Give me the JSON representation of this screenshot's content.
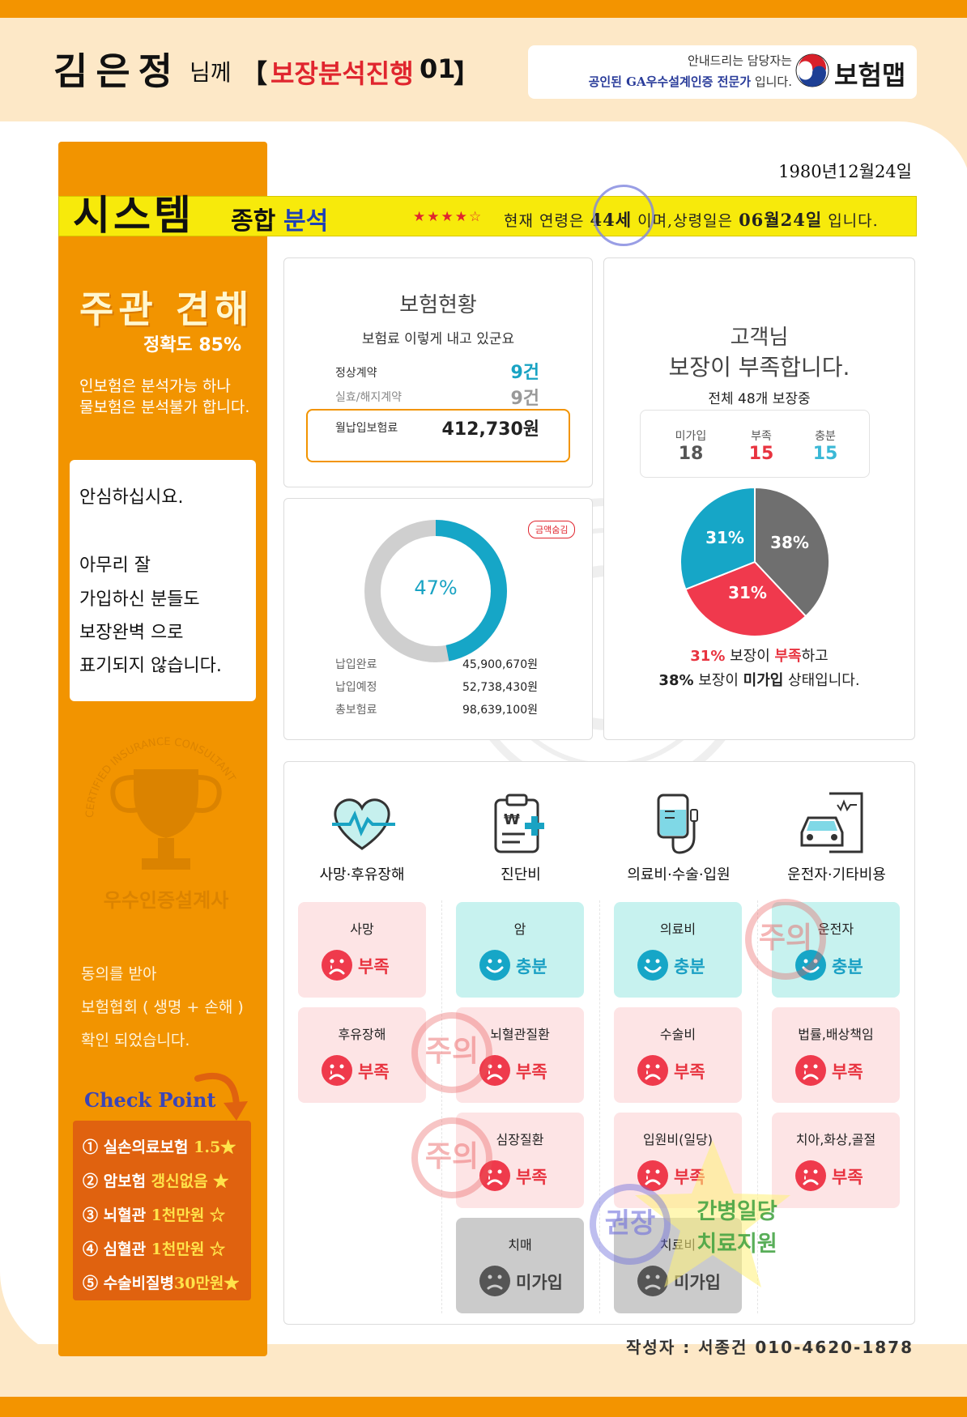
{
  "header": {
    "customer_name": "김은정",
    "honorific": "님께",
    "bracket_left": "【",
    "title": "보장분석진행",
    "number": "01",
    "bracket_right": "】",
    "guide_line1": "안내드리는 담당자는",
    "guide_line2_bold": "공인된 GA우수설계인증 전문가",
    "guide_line2_rest": " 입니다.",
    "brand": "보험맵"
  },
  "birth_date": "1980년12월24일",
  "system_banner": {
    "title": "시스템",
    "sub_black": "종합",
    "sub_blue": "분석",
    "stars": "★★★★☆",
    "age_prefix": "현재 연령은",
    "age": "44세",
    "age_mid": "이며,상령일은",
    "upgrade_date": "06월24일",
    "age_suffix": "입니다."
  },
  "left_panel": {
    "opinion_title": "주관 견해",
    "accuracy": "정확도 85%",
    "note_line1": "인보험은 분석가능 하나",
    "note_line2": "물보험은 분석불가 합니다.",
    "reassure": [
      "안심하십시요.",
      "아무리 잘",
      "가입하신 분들도",
      "보장완벽 으로",
      "표기되지 않습니다."
    ],
    "badge_text": "우수인증설계사",
    "badge_ring": "CERTIFIED INSURANCE CONSULTANT",
    "consent_line1": "동의를 받아",
    "consent_line2": "보험협회 ( 생명 + 손해 )",
    "consent_line3": "확인 되었습니다.",
    "check_title": "Check Point",
    "check_items": [
      {
        "prefix": "① 실손의료보험 ",
        "highlight": "1.5",
        "suffix": "★"
      },
      {
        "prefix": "② 암보험 ",
        "highlight": "갱신없음",
        "suffix": " ★"
      },
      {
        "prefix": "③ 뇌혈관 ",
        "highlight": "1천만원",
        "suffix": "  ☆"
      },
      {
        "prefix": "④ 심혈관 ",
        "highlight": "1천만원",
        "suffix": "  ☆"
      },
      {
        "prefix": "⑤ 수술비질병",
        "highlight": "30만원",
        "suffix": "★"
      }
    ]
  },
  "insurance_status": {
    "title": "보험현황",
    "subtitle": "보험료 이렇게 내고 있군요",
    "normal_label": "정상계약",
    "normal_value": "9건",
    "lapsed_label": "실효/해지계약",
    "lapsed_value": "9건",
    "monthly_label": "월납입보험료",
    "monthly_value": "412,730원"
  },
  "payment": {
    "stamp": "금액숨김",
    "percent_label": "47%",
    "percent": 47,
    "paid_label": "납입완료",
    "paid_value": "45,900,670원",
    "planned_label": "납입예정",
    "planned_value": "52,738,430원",
    "total_label": "총보험료",
    "total_value": "98,639,100원"
  },
  "coverage": {
    "title_line1": "고객님",
    "title_line2": "보장이 부족합니다.",
    "subtitle": "전체 48개 보장중",
    "stats": [
      {
        "label": "미가입",
        "value": "18",
        "color": "#555555"
      },
      {
        "label": "부족",
        "value": "15",
        "color": "#e8333f"
      },
      {
        "label": "충분",
        "value": "15",
        "color": "#3ab8d6"
      }
    ],
    "pie": [
      {
        "label": "38%",
        "value": 38,
        "color": "#6f6f6f"
      },
      {
        "label": "31%",
        "value": 31,
        "color": "#f0394d"
      },
      {
        "label": "31%",
        "value": 31,
        "color": "#16a6c7"
      }
    ],
    "summary1_pct": "31%",
    "summary1_mid": " 보장이 ",
    "summary1_word": "부족",
    "summary1_end": "하고",
    "summary2_pct": "38%",
    "summary2_mid": " 보장이 ",
    "summary2_word": "미가입",
    "summary2_end": " 상태입니다."
  },
  "categories": [
    {
      "label": "사망·후유장해",
      "icon": "heart-pulse-icon"
    },
    {
      "label": "진단비",
      "icon": "medical-clipboard-icon"
    },
    {
      "label": "의료비·수술·입원",
      "icon": "iv-drip-icon"
    },
    {
      "label": "운전자·기타비용",
      "icon": "car-document-icon"
    }
  ],
  "tiles": [
    {
      "title": "사망",
      "status": "부족",
      "kind": "bad"
    },
    {
      "title": "후유장해",
      "status": "부족",
      "kind": "bad"
    },
    {
      "title": "암",
      "status": "충분",
      "kind": "good"
    },
    {
      "title": "뇌혈관질환",
      "status": "부족",
      "kind": "bad"
    },
    {
      "title": "심장질환",
      "status": "부족",
      "kind": "bad"
    },
    {
      "title": "치매",
      "status": "미가입",
      "kind": "none"
    },
    {
      "title": "의료비",
      "status": "충분",
      "kind": "good"
    },
    {
      "title": "수술비",
      "status": "부족",
      "kind": "bad"
    },
    {
      "title": "입원비(일당)",
      "status": "부족",
      "kind": "bad"
    },
    {
      "title": "치료비",
      "status": "미가입",
      "kind": "none"
    },
    {
      "title": "운전자",
      "status": "충분",
      "kind": "good"
    },
    {
      "title": "법률,배상책임",
      "status": "부족",
      "kind": "bad"
    },
    {
      "title": "치아,화상,골절",
      "status": "부족",
      "kind": "bad"
    }
  ],
  "stamps": {
    "caution": "주의",
    "recommend": "권장",
    "star_line1": "간병일당",
    "star_line2": "치료지원"
  },
  "author": "작성자 : 서종건 010-4620-1878",
  "colors": {
    "orange": "#f29400",
    "peach": "#fde8c7",
    "red": "#e8333f",
    "teal": "#16a6c7",
    "grey": "#6f6f6f"
  }
}
